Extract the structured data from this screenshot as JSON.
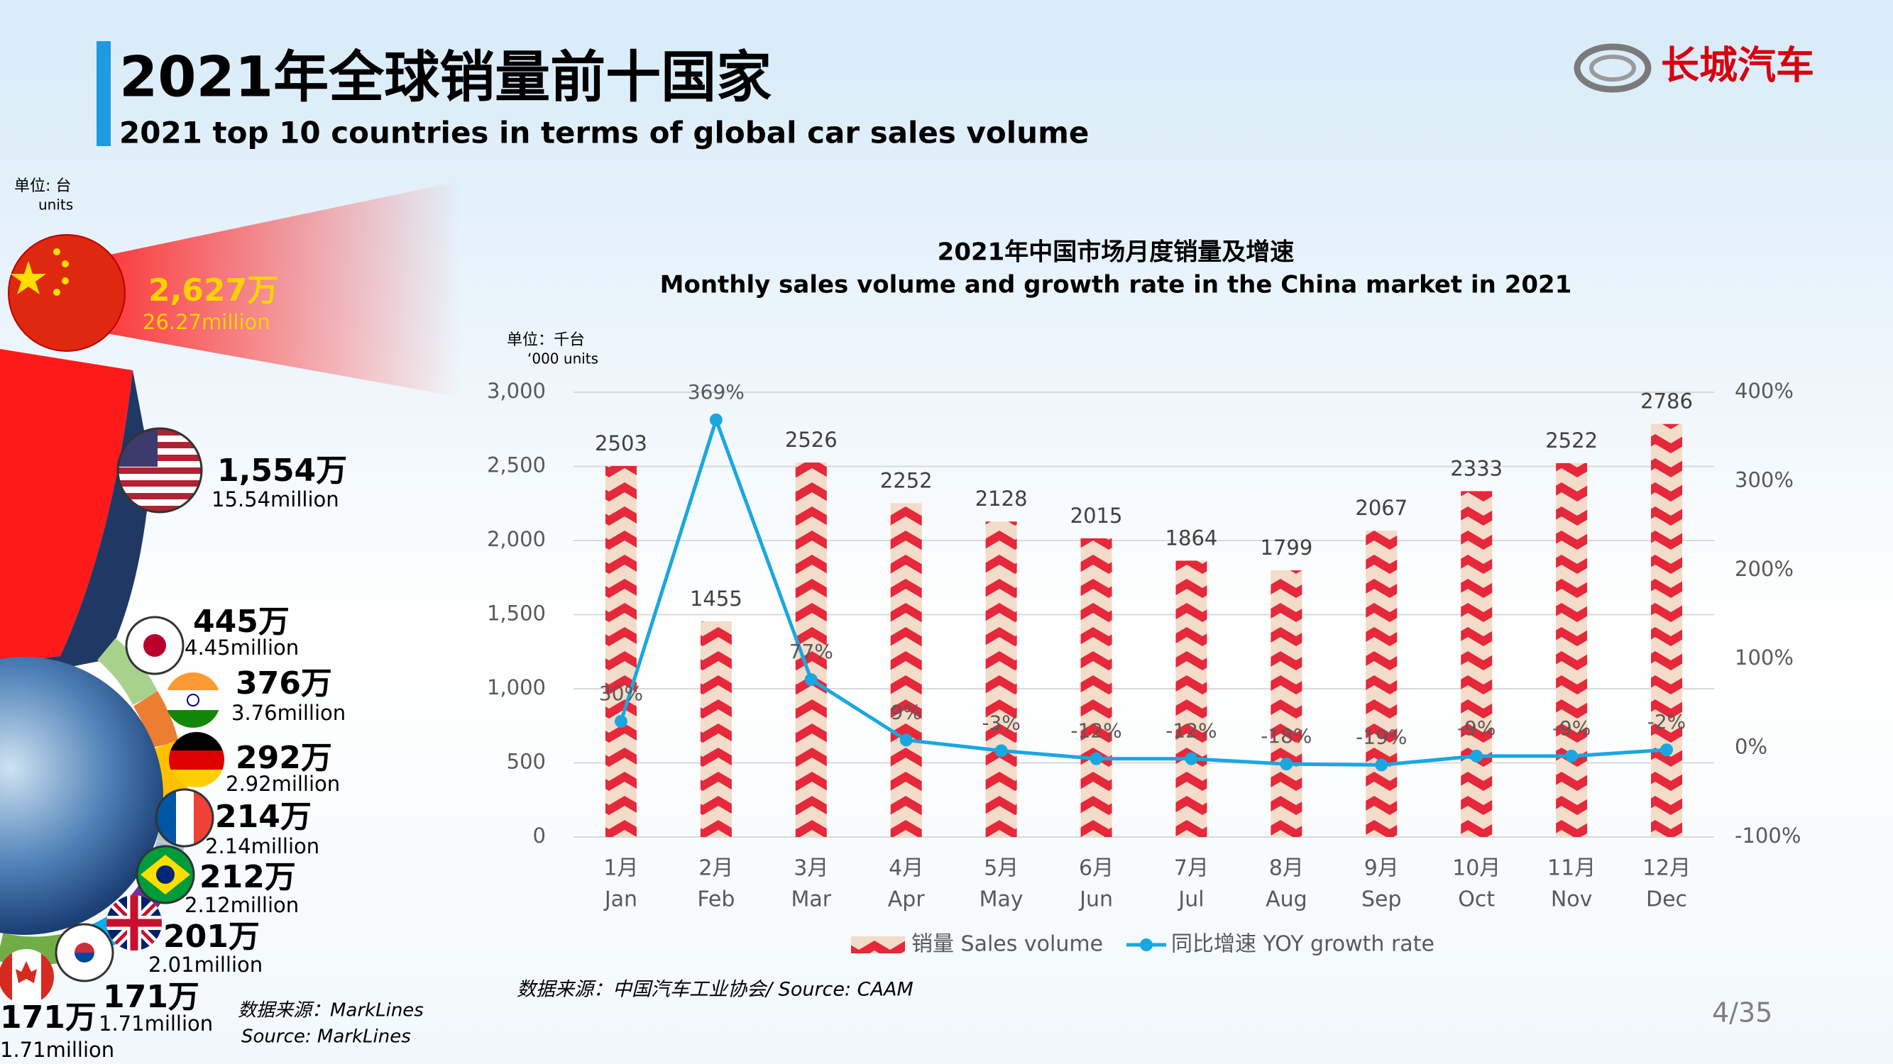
{
  "header": {
    "title": "2021年全球销量前十国家",
    "subtitle": "2021 top 10 countries in terms of global car sales volume",
    "logo": "长城汽车"
  },
  "left_panel": {
    "unit": "单位: 台",
    "unit_en": "units",
    "countries": [
      {
        "value": "2,627万",
        "million": "26.27million"
      },
      {
        "value": "1,554万",
        "million": "15.54million"
      },
      {
        "value": "445万",
        "million": "4.45million"
      },
      {
        "value": "376万",
        "million": "3.76million"
      },
      {
        "value": "292万",
        "million": "2.92million"
      },
      {
        "value": "214万",
        "million": "2.14million"
      },
      {
        "value": "212万",
        "million": "2.12million"
      },
      {
        "value": "201万",
        "million": "2.01million"
      },
      {
        "value": "171万",
        "million": "1.71million"
      },
      {
        "value": "171万",
        "million": "1.71million"
      }
    ],
    "source": "数据来源：MarkLines",
    "source_en": "Source: MarkLines"
  },
  "chart_data": {
    "type": "bar",
    "title": "2021年中国市场月度销量及增速",
    "subtitle": "Monthly sales volume and growth rate in the China market in 2021",
    "unit": "单位：千台",
    "unit_en": "‘000 units",
    "categories": [
      "1月",
      "2月",
      "3月",
      "4月",
      "5月",
      "6月",
      "7月",
      "8月",
      "9月",
      "10月",
      "11月",
      "12月"
    ],
    "categories_en": [
      "Jan",
      "Feb",
      "Mar",
      "Apr",
      "May",
      "Jun",
      "Jul",
      "Aug",
      "Sep",
      "Oct",
      "Nov",
      "Dec"
    ],
    "series": [
      {
        "name": "销量 Sales volume",
        "type": "bar",
        "color": "#e5283a",
        "values": [
          2503,
          1455,
          2526,
          2252,
          2128,
          2015,
          1864,
          1799,
          2067,
          2333,
          2522,
          2786
        ]
      },
      {
        "name": "同比增速 YOY growth rate",
        "type": "line",
        "axis": "y2",
        "color": "#1aa7e0",
        "values": [
          30,
          369,
          77,
          9,
          -3,
          -12,
          -12,
          -18,
          -19,
          -9,
          -9,
          -2
        ],
        "value_labels": [
          "30%",
          "369%",
          "77%",
          "9%",
          "-3%",
          "-12%",
          "-12%",
          "-18%",
          "-19%",
          "-9%",
          "-9%",
          "-2%"
        ]
      }
    ],
    "ylim": [
      0,
      3000
    ],
    "yticks": [
      0,
      500,
      {
        "value": 1000,
        "label": "1,000"
      },
      {
        "value": 1500,
        "label": "1,500"
      },
      {
        "value": 2000,
        "label": "2,000"
      },
      {
        "value": 2500,
        "label": "2,500"
      },
      {
        "value": 3000,
        "label": "3,000"
      }
    ],
    "y2lim": [
      -100,
      400
    ],
    "y2ticks": [
      {
        "value": -100,
        "label": "-100%"
      },
      {
        "value": 0,
        "label": "0%"
      },
      {
        "value": 100,
        "label": "100%"
      },
      {
        "value": 200,
        "label": "200%"
      },
      {
        "value": 300,
        "label": "300%"
      },
      {
        "value": 400,
        "label": "400%"
      }
    ],
    "grid": true,
    "legend": "bottom"
  },
  "chart_source": "数据来源：中国汽车工业协会/ Source: CAAM",
  "page_number": "4/35"
}
